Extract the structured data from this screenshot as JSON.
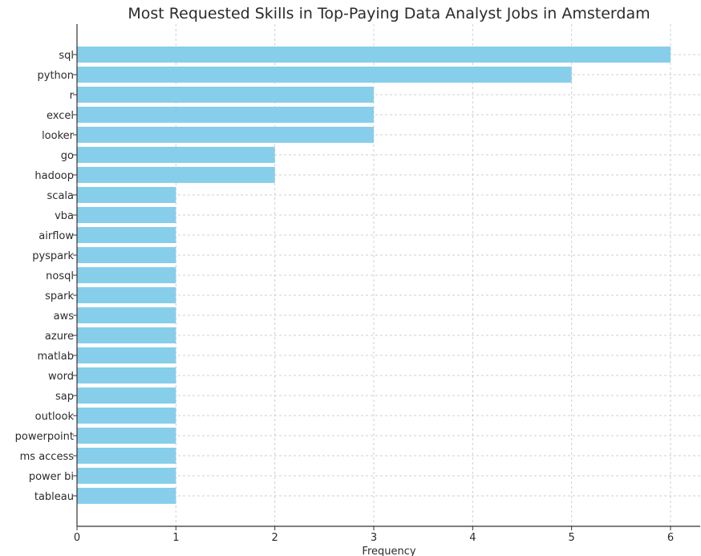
{
  "chart_data": {
    "type": "bar",
    "orientation": "horizontal",
    "title": "Most Requested Skills in Top-Paying Data Analyst Jobs in Amsterdam",
    "xlabel": "Frequency",
    "ylabel": "",
    "xlim": [
      0,
      6.3
    ],
    "x_ticks": [
      "0",
      "1",
      "2",
      "3",
      "4",
      "5",
      "6"
    ],
    "grid": true,
    "bar_color": "#87CEEB",
    "categories": [
      "sql",
      "python",
      "r",
      "excel",
      "looker",
      "go",
      "hadoop",
      "scala",
      "vba",
      "airflow",
      "pyspark",
      "nosql",
      "spark",
      "aws",
      "azure",
      "matlab",
      "word",
      "sap",
      "outlook",
      "powerpoint",
      "ms access",
      "power bi",
      "tableau"
    ],
    "values": [
      6,
      5,
      3,
      3,
      3,
      2,
      2,
      1,
      1,
      1,
      1,
      1,
      1,
      1,
      1,
      1,
      1,
      1,
      1,
      1,
      1,
      1,
      1
    ]
  }
}
